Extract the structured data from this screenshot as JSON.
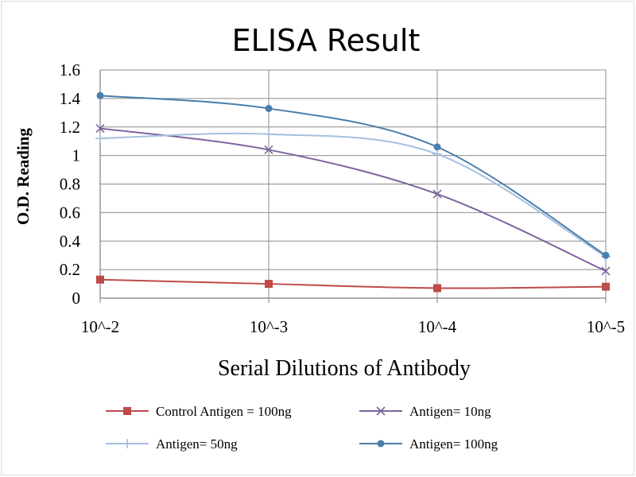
{
  "chart_data": {
    "type": "line",
    "title": "ELISA Result",
    "xlabel": "Serial Dilutions of Antibody",
    "ylabel": "O.D. Reading",
    "categories": [
      "10^-2",
      "10^-3",
      "10^-4",
      "10^-5"
    ],
    "ylim": [
      0,
      1.6
    ],
    "yticks": [
      "0",
      "0.2",
      "0.4",
      "0.6",
      "0.8",
      "1",
      "1.2",
      "1.4",
      "1.6"
    ],
    "grid": true,
    "legend_position": "bottom",
    "series": [
      {
        "name": "Control Antigen = 100ng",
        "values": [
          0.13,
          0.1,
          0.07,
          0.08
        ],
        "color": "#be4b48",
        "marker": "square"
      },
      {
        "name": "Antigen= 10ng",
        "values": [
          1.19,
          1.04,
          0.73,
          0.19
        ],
        "color": "#7e649e",
        "marker": "x"
      },
      {
        "name": "Antigen= 50ng",
        "values": [
          1.12,
          1.15,
          1.01,
          0.29
        ],
        "color": "#a5c0e0",
        "marker": "plus"
      },
      {
        "name": "Antigen= 100ng",
        "values": [
          1.42,
          1.33,
          1.06,
          0.3
        ],
        "color": "#4a7eab",
        "marker": "circle"
      }
    ]
  }
}
